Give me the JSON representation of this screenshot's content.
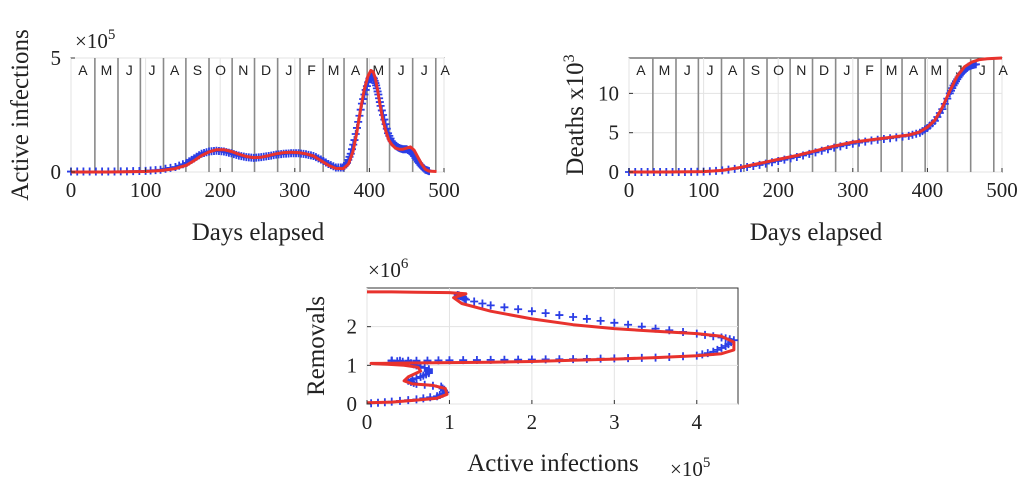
{
  "chart_data": [
    {
      "type": "line",
      "name": "active-infections",
      "ylabel": "Active  infections",
      "xlabel": "Days elapsed",
      "y_multiplier": "×10",
      "y_exponent": "5",
      "xlim": [
        0,
        500
      ],
      "ylim": [
        0,
        5
      ],
      "xticks": [
        0,
        100,
        200,
        300,
        400,
        500
      ],
      "yticks": [
        0,
        5
      ],
      "grid": true,
      "month_lines": [
        32,
        63,
        93,
        124,
        154,
        185,
        216,
        246,
        277,
        307,
        338,
        366,
        397,
        427,
        458,
        489
      ],
      "months": [
        "A",
        "M",
        "J",
        "J",
        "A",
        "S",
        "O",
        "N",
        "D",
        "J",
        "F",
        "M",
        "A",
        "M",
        "J",
        "J",
        "A"
      ],
      "colors": {
        "data": "#2b3ee6",
        "model": "#e8322d",
        "month_line": "#8a8a8a"
      },
      "series": [
        {
          "name": "data",
          "marker": "+",
          "x": [
            0,
            25,
            50,
            75,
            100,
            120,
            140,
            155,
            165,
            175,
            185,
            195,
            205,
            215,
            225,
            235,
            245,
            255,
            265,
            275,
            285,
            295,
            305,
            315,
            325,
            335,
            345,
            355,
            365,
            370,
            375,
            380,
            385,
            390,
            395,
            400,
            403,
            406,
            409,
            412,
            415,
            420,
            425,
            430,
            435,
            440,
            445,
            450,
            455,
            460,
            465,
            470,
            475,
            480
          ],
          "y": [
            0.02,
            0.02,
            0.02,
            0.03,
            0.05,
            0.1,
            0.22,
            0.4,
            0.6,
            0.8,
            0.9,
            0.93,
            0.9,
            0.82,
            0.72,
            0.65,
            0.62,
            0.65,
            0.7,
            0.76,
            0.8,
            0.82,
            0.82,
            0.78,
            0.7,
            0.55,
            0.35,
            0.2,
            0.2,
            0.4,
            0.8,
            1.4,
            2.2,
            3.0,
            3.6,
            4.1,
            4.2,
            4.1,
            3.8,
            3.4,
            2.9,
            2.3,
            1.7,
            1.35,
            1.15,
            1.05,
            1.0,
            1.0,
            0.9,
            0.7,
            0.45,
            0.25,
            0.1,
            0.04
          ]
        },
        {
          "name": "model",
          "marker": "",
          "x": [
            0,
            50,
            100,
            120,
            140,
            155,
            165,
            175,
            185,
            195,
            205,
            215,
            225,
            235,
            245,
            255,
            265,
            275,
            285,
            295,
            305,
            315,
            325,
            335,
            345,
            355,
            365,
            372,
            378,
            383,
            388,
            393,
            398,
            402,
            405,
            408,
            411,
            414,
            418,
            422,
            426,
            430,
            435,
            440,
            445,
            450,
            455,
            460,
            465,
            470,
            475,
            480,
            490
          ],
          "y": [
            0,
            0,
            0.02,
            0.06,
            0.15,
            0.3,
            0.5,
            0.72,
            0.88,
            0.98,
            0.98,
            0.9,
            0.78,
            0.68,
            0.63,
            0.65,
            0.72,
            0.8,
            0.85,
            0.87,
            0.85,
            0.8,
            0.7,
            0.5,
            0.3,
            0.16,
            0.15,
            0.35,
            0.9,
            1.7,
            2.7,
            3.6,
            4.2,
            4.45,
            4.4,
            4.1,
            3.6,
            3.0,
            2.3,
            1.8,
            1.4,
            1.2,
            1.05,
            1.0,
            1.0,
            1.05,
            1.1,
            0.95,
            0.65,
            0.35,
            0.12,
            0.04,
            0.02
          ]
        }
      ]
    },
    {
      "type": "line",
      "name": "deaths",
      "ylabel": "Deaths x10",
      "ylabel_exponent": "3",
      "xlabel": "Days elapsed",
      "xlim": [
        0,
        500
      ],
      "ylim": [
        0,
        14.5
      ],
      "xticks": [
        0,
        100,
        200,
        300,
        400,
        500
      ],
      "yticks": [
        0,
        5,
        10
      ],
      "grid": true,
      "month_lines": [
        32,
        63,
        93,
        124,
        154,
        185,
        216,
        246,
        277,
        307,
        338,
        366,
        397,
        427,
        458,
        489
      ],
      "months": [
        "A",
        "M",
        "J",
        "J",
        "A",
        "S",
        "O",
        "N",
        "D",
        "J",
        "F",
        "M",
        "A",
        "M",
        "J",
        "J",
        "A"
      ],
      "colors": {
        "data": "#2b3ee6",
        "model": "#e8322d",
        "month_line": "#8a8a8a"
      },
      "series": [
        {
          "name": "data",
          "marker": "+",
          "x": [
            0,
            25,
            50,
            75,
            100,
            125,
            150,
            175,
            200,
            225,
            250,
            275,
            300,
            325,
            350,
            375,
            390,
            400,
            410,
            420,
            430,
            435,
            440,
            445,
            450,
            455,
            460,
            465
          ],
          "y": [
            0,
            0,
            0,
            0,
            0.05,
            0.2,
            0.5,
            0.9,
            1.4,
            1.9,
            2.5,
            3.1,
            3.6,
            4.0,
            4.3,
            4.6,
            5.0,
            5.6,
            6.5,
            8.0,
            10.0,
            11.0,
            11.8,
            12.5,
            13.0,
            13.4,
            13.6,
            13.7
          ]
        },
        {
          "name": "model",
          "marker": "",
          "x": [
            0,
            50,
            100,
            125,
            150,
            175,
            200,
            225,
            250,
            275,
            300,
            325,
            350,
            375,
            390,
            400,
            410,
            420,
            430,
            440,
            450,
            460,
            470,
            480,
            490,
            500
          ],
          "y": [
            0,
            0,
            0.05,
            0.2,
            0.6,
            1.1,
            1.6,
            2.1,
            2.7,
            3.3,
            3.8,
            4.1,
            4.4,
            4.7,
            5.1,
            5.7,
            6.6,
            8.2,
            10.3,
            12.2,
            13.4,
            14.0,
            14.3,
            14.4,
            14.45,
            14.5
          ]
        }
      ]
    },
    {
      "type": "line",
      "name": "phase-plot",
      "ylabel": "Removals",
      "xlabel": "Active infections",
      "x_multiplier": "×10",
      "x_exponent": "5",
      "y_multiplier": "×10",
      "y_exponent": "6",
      "xlim": [
        0,
        4.5
      ],
      "ylim": [
        0,
        3
      ],
      "xticks": [
        0,
        1,
        2,
        3,
        4
      ],
      "yticks": [
        0,
        1,
        2
      ],
      "grid": true,
      "colors": {
        "data": "#2b3ee6",
        "model": "#e8322d"
      },
      "series": [
        {
          "name": "data",
          "marker": "+",
          "x": [
            0.05,
            0.3,
            0.6,
            0.85,
            0.95,
            0.9,
            0.6,
            0.5,
            0.65,
            0.75,
            0.75,
            0.6,
            0.5,
            0.3,
            0.3,
            0.6,
            1.0,
            1.5,
            2.0,
            2.5,
            3.0,
            3.5,
            4.0,
            4.2,
            4.35,
            4.45,
            4.3,
            4.0,
            3.5,
            3.0,
            2.5,
            2.0,
            1.5,
            1.2,
            1.15,
            1.1
          ],
          "y": [
            0.02,
            0.06,
            0.12,
            0.2,
            0.3,
            0.45,
            0.52,
            0.6,
            0.7,
            0.8,
            0.9,
            1.0,
            1.08,
            1.12,
            1.12,
            1.12,
            1.13,
            1.14,
            1.15,
            1.16,
            1.18,
            1.2,
            1.25,
            1.35,
            1.5,
            1.65,
            1.72,
            1.82,
            1.95,
            2.1,
            2.25,
            2.4,
            2.55,
            2.7,
            2.78,
            2.82
          ]
        },
        {
          "name": "model",
          "marker": "",
          "x": [
            0,
            0.3,
            0.6,
            0.85,
            0.97,
            0.95,
            0.8,
            0.55,
            0.45,
            0.5,
            0.65,
            0.62,
            0.45,
            0.25,
            0.1,
            0.05,
            0.1,
            0.5,
            1.0,
            1.5,
            2.0,
            2.5,
            3.0,
            3.5,
            4.0,
            4.3,
            4.45,
            4.45,
            4.3,
            4.0,
            3.5,
            3.0,
            2.5,
            2.0,
            1.5,
            1.15,
            1.05,
            1.2,
            1.0,
            0.6,
            0.3,
            0.1,
            0
          ],
          "y": [
            0.03,
            0.05,
            0.1,
            0.15,
            0.25,
            0.4,
            0.48,
            0.52,
            0.6,
            0.7,
            0.85,
            0.95,
            1.0,
            1.03,
            1.04,
            1.05,
            1.05,
            1.06,
            1.07,
            1.08,
            1.1,
            1.13,
            1.16,
            1.2,
            1.25,
            1.3,
            1.4,
            1.6,
            1.75,
            1.82,
            1.88,
            1.95,
            2.05,
            2.2,
            2.4,
            2.6,
            2.75,
            2.85,
            2.88,
            2.89,
            2.9,
            2.9,
            2.9
          ]
        }
      ]
    }
  ]
}
